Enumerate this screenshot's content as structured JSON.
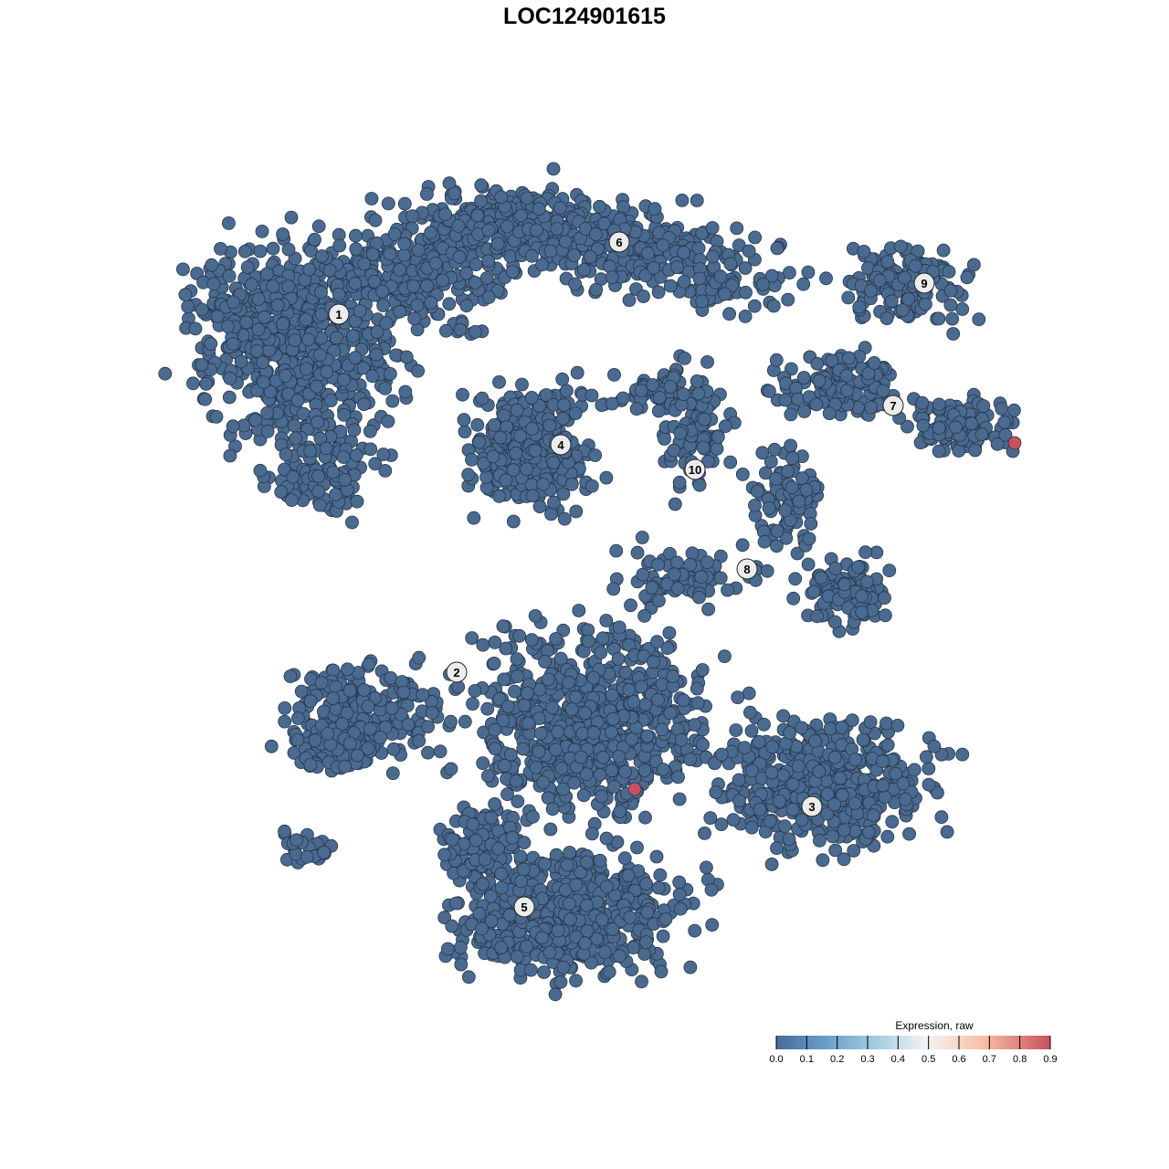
{
  "chart_data": {
    "type": "scatter",
    "title": "LOC124901615",
    "xlabel": "",
    "ylabel": "",
    "grid": false,
    "axes_visible": false,
    "point_color_low": "#4a6a8f",
    "point_color_high": "#c8515f",
    "cluster_labels": [
      "1",
      "2",
      "3",
      "4",
      "5",
      "6",
      "7",
      "8",
      "9",
      "10"
    ],
    "expression_summary": {
      "value_most_cells": 0.0,
      "cells_at_max": 2,
      "max_value": 0.9
    },
    "colorbar": {
      "title": "Expression, raw",
      "ticks": [
        "0.0",
        "0.1",
        "0.2",
        "0.3",
        "0.4",
        "0.5",
        "0.6",
        "0.7",
        "0.8",
        "0.9"
      ],
      "range": [
        0,
        0.9
      ],
      "colors": [
        "#4a6a96",
        "#6296c4",
        "#9dc9e0",
        "#f4f4f4",
        "#f7c1a6",
        "#c8515f"
      ],
      "placement": "bottom-right"
    }
  }
}
